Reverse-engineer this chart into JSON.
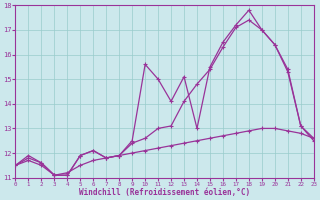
{
  "xlabel": "Windchill (Refroidissement éolien,°C)",
  "background_color": "#cce8ec",
  "line_color": "#993399",
  "xlim": [
    0,
    23
  ],
  "ylim": [
    11,
    18
  ],
  "yticks": [
    11,
    12,
    13,
    14,
    15,
    16,
    17,
    18
  ],
  "xticks": [
    0,
    1,
    2,
    3,
    4,
    5,
    6,
    7,
    8,
    9,
    10,
    11,
    12,
    13,
    14,
    15,
    16,
    17,
    18,
    19,
    20,
    21,
    22,
    23
  ],
  "series1_x": [
    0,
    1,
    2,
    3,
    4,
    5,
    6,
    7,
    8,
    9,
    10,
    11,
    12,
    13,
    14,
    15,
    16,
    17,
    18,
    19,
    20,
    21,
    22,
    23
  ],
  "series1_y": [
    11.5,
    11.9,
    11.6,
    11.1,
    11.1,
    11.9,
    12.1,
    11.8,
    11.9,
    12.5,
    15.6,
    15.0,
    14.1,
    15.1,
    13.0,
    15.5,
    16.5,
    17.2,
    17.8,
    17.0,
    16.4,
    15.3,
    13.1,
    12.5
  ],
  "series2_x": [
    0,
    1,
    2,
    3,
    4,
    5,
    6,
    7,
    8,
    9,
    10,
    11,
    12,
    13,
    14,
    15,
    16,
    17,
    18,
    19,
    20,
    21,
    22,
    23
  ],
  "series2_y": [
    11.5,
    11.8,
    11.6,
    11.1,
    11.1,
    11.9,
    12.1,
    11.8,
    11.9,
    12.4,
    12.6,
    13.0,
    13.1,
    14.1,
    14.8,
    15.4,
    16.3,
    17.1,
    17.4,
    17.0,
    16.4,
    15.4,
    13.1,
    12.6
  ],
  "series3_x": [
    0,
    1,
    2,
    3,
    4,
    5,
    6,
    7,
    8,
    9,
    10,
    11,
    12,
    13,
    14,
    15,
    16,
    17,
    18,
    19,
    20,
    21,
    22,
    23
  ],
  "series3_y": [
    11.5,
    11.7,
    11.5,
    11.1,
    11.2,
    11.5,
    11.7,
    11.8,
    11.9,
    12.0,
    12.1,
    12.2,
    12.3,
    12.4,
    12.5,
    12.6,
    12.7,
    12.8,
    12.9,
    13.0,
    13.0,
    12.9,
    12.8,
    12.6
  ],
  "grid_color": "#99cccc",
  "marker": "+"
}
